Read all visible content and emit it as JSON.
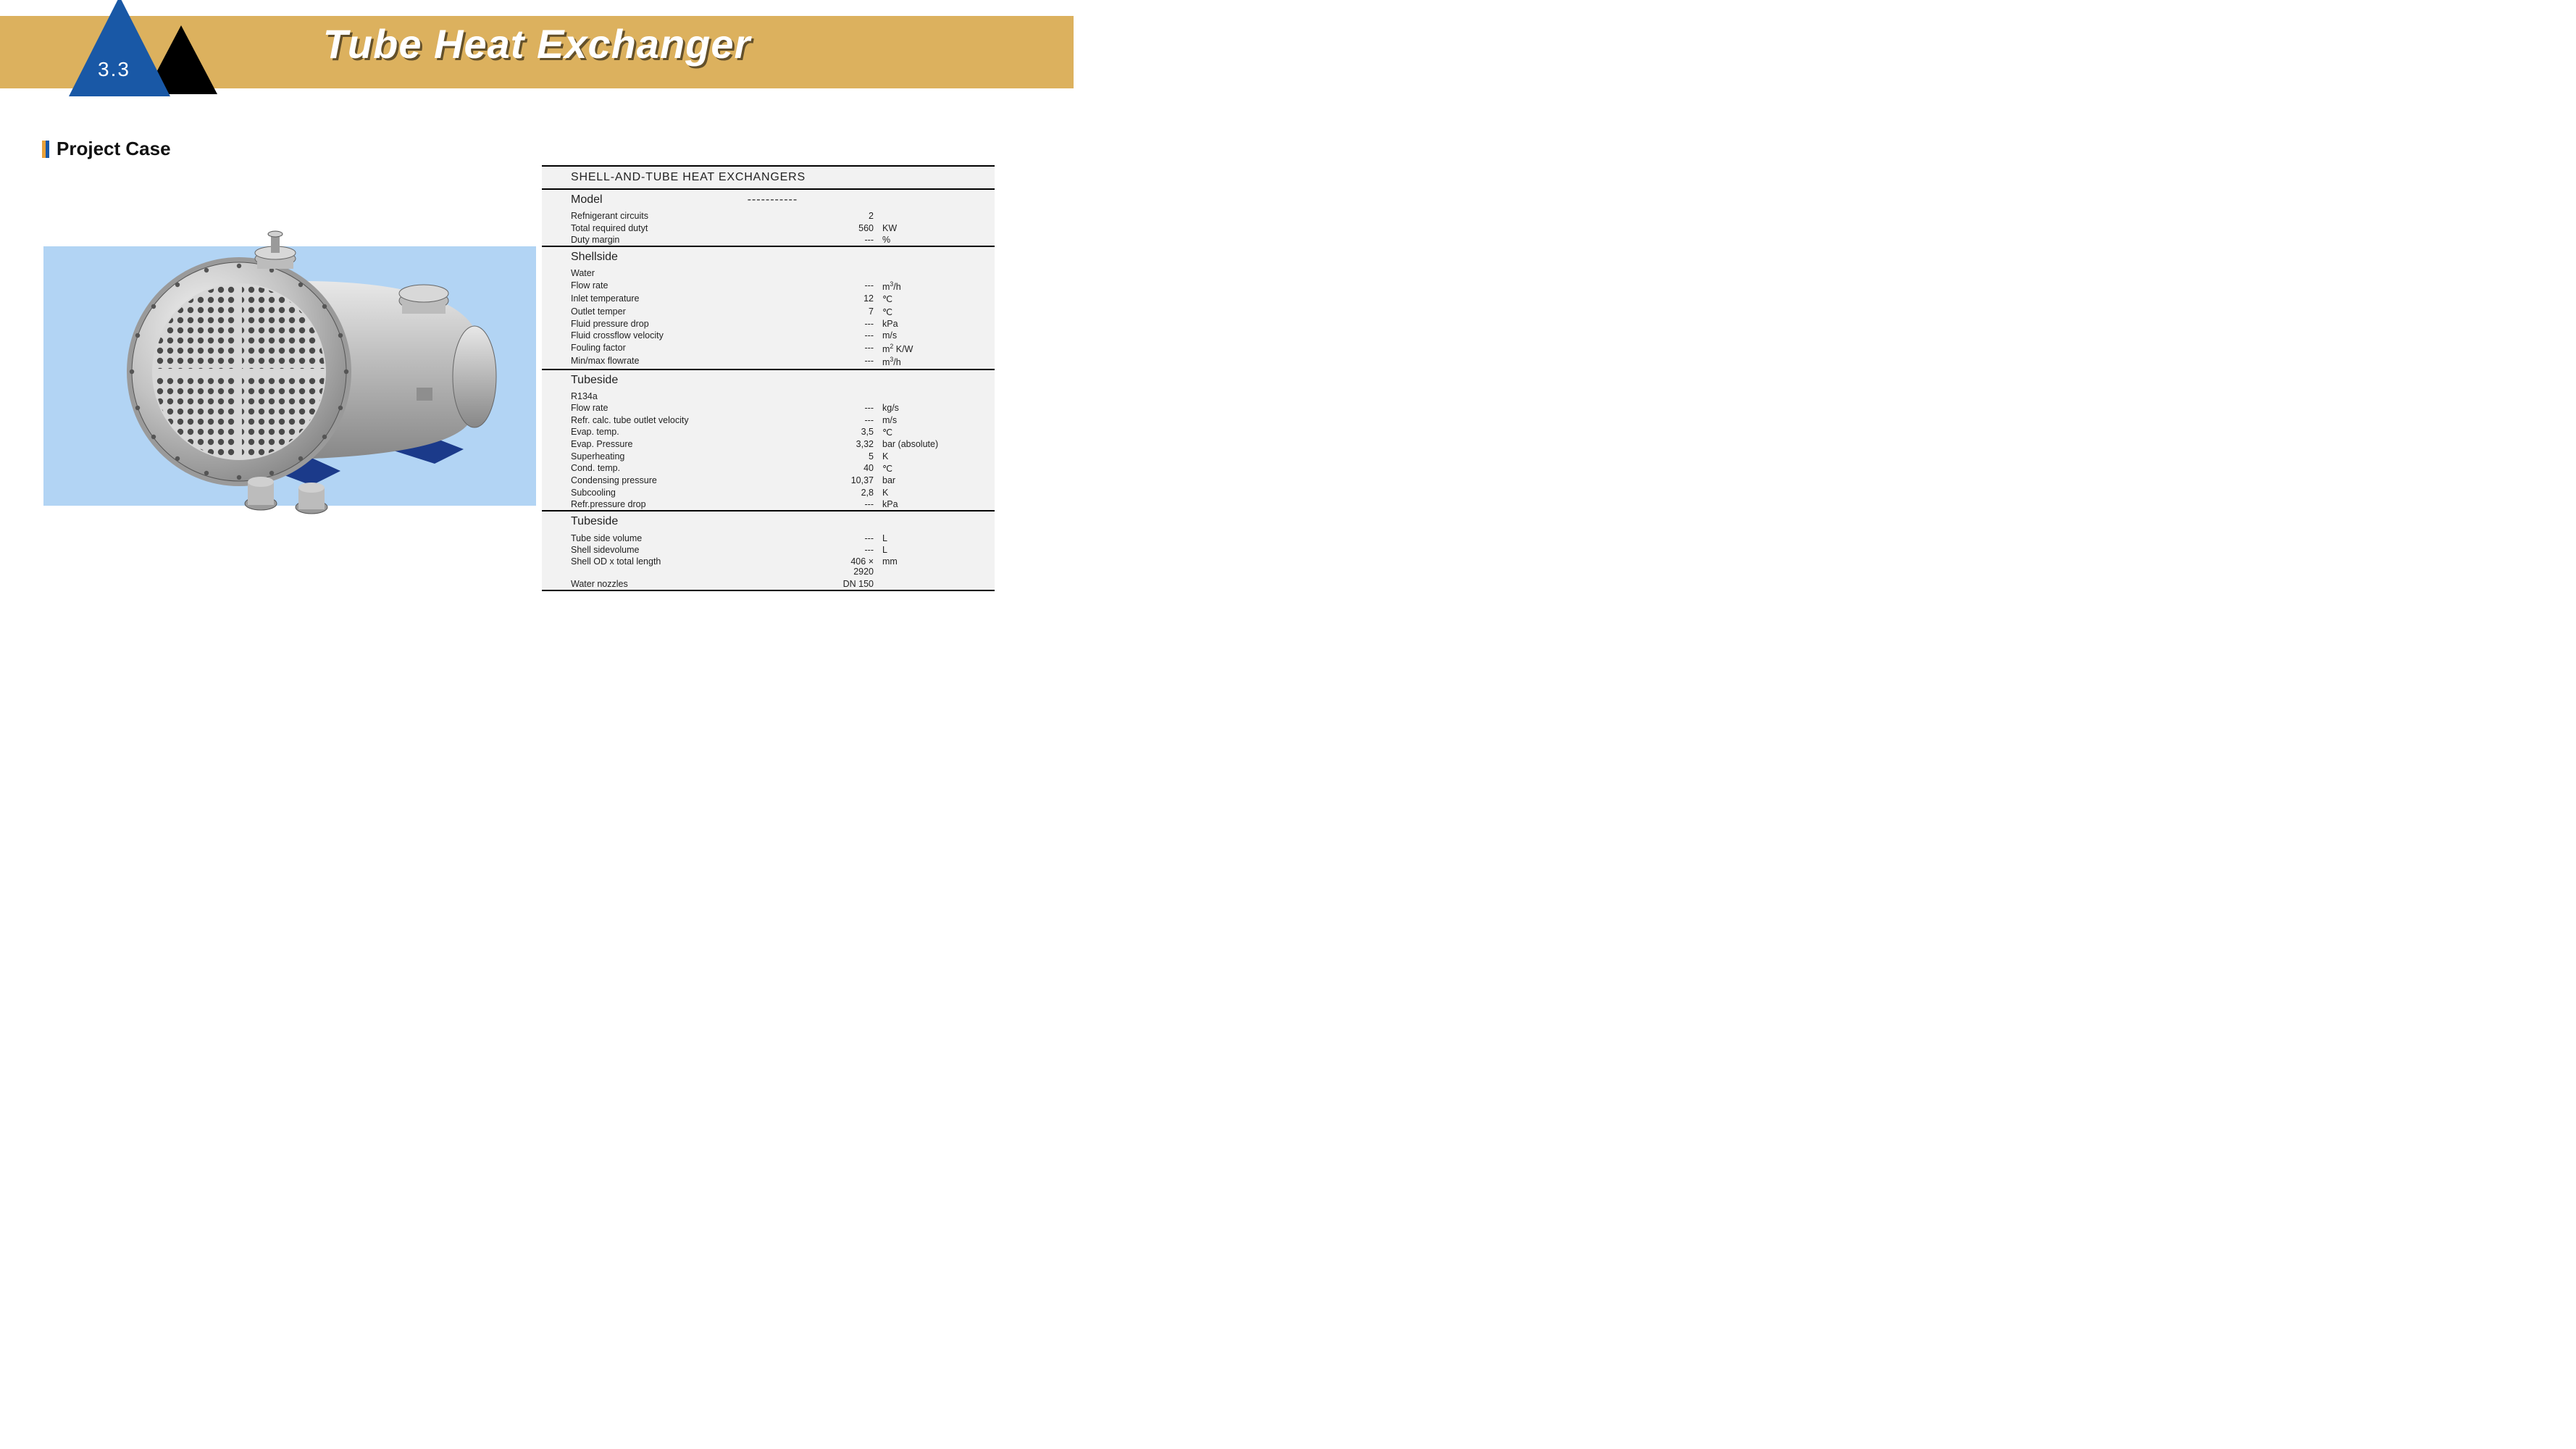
{
  "header": {
    "band_color": "#dcb15e",
    "triangle_blue": "#1958a6",
    "triangle_black": "#000000",
    "section_number": "3.3",
    "title": "Tube Heat Exchanger",
    "title_color": "#ffffff",
    "title_fontsize": 56
  },
  "subheader": {
    "bar_colors": [
      "#e8a13a",
      "#1958a6"
    ],
    "text": "Project Case",
    "fontsize": 26
  },
  "photo": {
    "background_color": "#b2d4f4",
    "body_color": "#c0c0c0",
    "frame_color": "#1b3a8a"
  },
  "spec": {
    "background_color": "#f2f2f2",
    "border_color": "#000000",
    "title": "SHELL-AND-TUBE HEAT EXCHANGERS",
    "title_fontsize": 16,
    "row_fontsize": 12.5,
    "sections": [
      {
        "header": "Model",
        "header_extra": "-----------",
        "rows": [
          {
            "label": "Refnigerant circuits",
            "value": "2",
            "unit": ""
          },
          {
            "label": "Total required dutyt",
            "value": "560",
            "unit": "KW"
          },
          {
            "label": "Duty margin",
            "value": "---",
            "unit": "%"
          }
        ]
      },
      {
        "header": "Shellside",
        "rows": [
          {
            "label": "Water",
            "value": "",
            "unit": ""
          },
          {
            "label": "Flow rate",
            "value": "---",
            "unit": "m³/h"
          },
          {
            "label": "Inlet temperature",
            "value": "12",
            "unit": "℃"
          },
          {
            "label": "Outlet temper",
            "value": "7",
            "unit": "℃"
          },
          {
            "label": "Fluid pressure drop",
            "value": "---",
            "unit": "kPa"
          },
          {
            "label": "Fluid crossflow velocity",
            "value": "---",
            "unit": "m/s"
          },
          {
            "label": "Fouling factor",
            "value": "---",
            "unit": "m² K/W"
          },
          {
            "label": "Min/max flowrate",
            "value": "---",
            "unit": "m³/h"
          }
        ]
      },
      {
        "header": "Tubeside",
        "rows": [
          {
            "label": "R134a",
            "value": "",
            "unit": ""
          },
          {
            "label": "Flow rate",
            "value": "---",
            "unit": "kg/s"
          },
          {
            "label": "Refr. calc. tube outlet velocity",
            "value": "---",
            "unit": "m/s"
          },
          {
            "label": "Evap. temp.",
            "value": "3,5",
            "unit": "℃"
          },
          {
            "label": "Evap. Pressure",
            "value": "3,32",
            "unit": "bar (absolute)"
          },
          {
            "label": "Superheating",
            "value": "5",
            "unit": "K"
          },
          {
            "label": "Cond. temp.",
            "value": "40",
            "unit": "℃"
          },
          {
            "label": "Condensing pressure",
            "value": "10,37",
            "unit": "bar"
          },
          {
            "label": "Subcooling",
            "value": "2,8",
            "unit": "K"
          },
          {
            "label": "Refr.pressure drop",
            "value": "---",
            "unit": "kPa"
          }
        ]
      },
      {
        "header": "Tubeside",
        "rows": [
          {
            "label": "Tube side volume",
            "value": "---",
            "unit": "L"
          },
          {
            "label": "Shell sidevolume",
            "value": "---",
            "unit": "L"
          },
          {
            "label": "Shell OD x total length",
            "value": "406 × 2920",
            "unit": "mm"
          },
          {
            "label": "Water nozzles",
            "value": "DN 150",
            "unit": ""
          }
        ]
      }
    ]
  }
}
